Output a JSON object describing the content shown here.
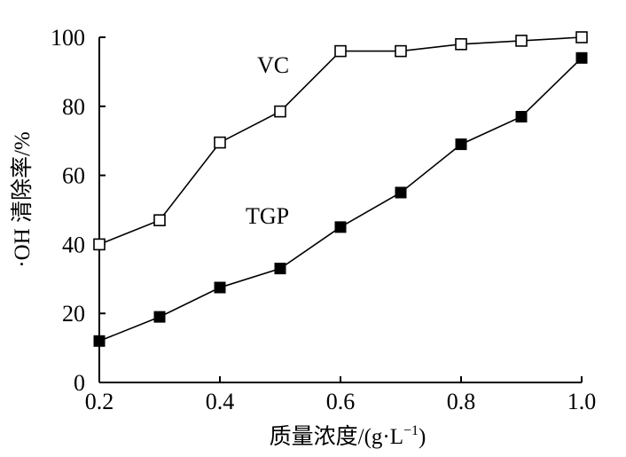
{
  "chart_data": {
    "type": "line",
    "xlabel": "质量浓度/(g·L",
    "xlabel_sup": "−1",
    "xlabel_close": ")",
    "ylabel": "·OH 清除率/%",
    "xlim": [
      0.2,
      1.0
    ],
    "ylim": [
      0,
      100
    ],
    "xticks": [
      0.2,
      0.4,
      0.6,
      0.8,
      1.0
    ],
    "xtick_labels": [
      "0.2",
      "0.4",
      "0.6",
      "0.8",
      "1.0"
    ],
    "yticks": [
      0,
      20,
      40,
      60,
      80,
      100
    ],
    "ytick_labels": [
      "0",
      "20",
      "40",
      "60",
      "80",
      "100"
    ],
    "grid": false,
    "x": [
      0.2,
      0.3,
      0.4,
      0.5,
      0.6,
      0.7,
      0.8,
      0.9,
      1.0
    ],
    "series": [
      {
        "name": "VC",
        "marker": "open-square",
        "color": "#000000",
        "values": [
          40,
          47,
          69.5,
          78.5,
          96,
          96,
          98,
          99,
          100
        ]
      },
      {
        "name": "TGP",
        "marker": "filled-square",
        "color": "#000000",
        "values": [
          12,
          19,
          27.5,
          33,
          45,
          55,
          69,
          77,
          94
        ]
      }
    ]
  }
}
